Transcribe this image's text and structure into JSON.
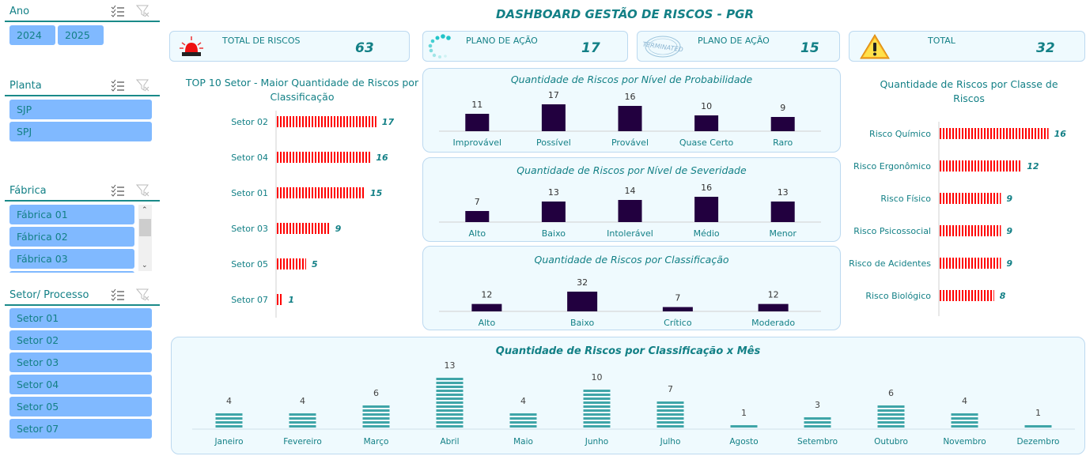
{
  "header": {
    "title": "DASHBOARD GESTÃO DE RISCOS - PGR"
  },
  "slicers": {
    "ano": {
      "title": "Ano",
      "items": [
        "2024",
        "2025"
      ]
    },
    "planta": {
      "title": "Planta",
      "items": [
        "SJP",
        "SPJ"
      ]
    },
    "fabrica": {
      "title": "Fábrica",
      "items": [
        "Fábrica 01",
        "Fábrica 02",
        "Fábrica 03"
      ]
    },
    "setor": {
      "title": "Setor/ Processo",
      "items": [
        "Setor 01",
        "Setor 02",
        "Setor 03",
        "Setor 04",
        "Setor 05",
        "Setor 07"
      ]
    }
  },
  "kpis": [
    {
      "label": "TOTAL DE RISCOS",
      "value": "63",
      "icon": "siren-icon"
    },
    {
      "label": "PLANO DE AÇÃO",
      "value": "17",
      "icon": "loading-icon"
    },
    {
      "label": "PLANO DE AÇÃO",
      "value": "15",
      "icon": "terminated-stamp-icon"
    },
    {
      "label": "TOTAL",
      "value": "32",
      "icon": "warning-icon"
    }
  ],
  "colors": {
    "accent": "#138086",
    "red_bar": "#ff0000",
    "dark_bar": "#22003f",
    "teal_bar": "#3fa5a8",
    "panel_bg": "#effafe"
  },
  "chart_data": [
    {
      "id": "top10",
      "type": "bar",
      "orientation": "horizontal",
      "title": "TOP 10 Setor - Maior Quantidade de Riscos por Classificação",
      "categories": [
        "Setor 02",
        "Setor 04",
        "Setor 01",
        "Setor 03",
        "Setor 05",
        "Setor 07"
      ],
      "values": [
        17,
        16,
        15,
        9,
        5,
        1
      ]
    },
    {
      "id": "probabilidade",
      "type": "bar",
      "title": "Quantidade de Riscos por Nível de Probabilidade",
      "categories": [
        "Improvável",
        "Possível",
        "Provável",
        "Quase Certo",
        "Raro"
      ],
      "values": [
        11,
        17,
        16,
        10,
        9
      ]
    },
    {
      "id": "severidade",
      "type": "bar",
      "title": "Quantidade de Riscos por Nível de Severidade",
      "categories": [
        "Alto",
        "Baixo",
        "Intolerável",
        "Médio",
        "Menor"
      ],
      "values": [
        7,
        13,
        14,
        16,
        13
      ]
    },
    {
      "id": "classificacao",
      "type": "bar",
      "title": "Quantidade de Riscos por Classificação",
      "categories": [
        "Alto",
        "Baixo",
        "Crítico",
        "Moderado"
      ],
      "values": [
        12,
        32,
        7,
        12
      ]
    },
    {
      "id": "classe",
      "type": "bar",
      "orientation": "horizontal",
      "title": "Quantidade de Riscos por Classe de Riscos",
      "categories": [
        "Risco Químico",
        "Risco Ergonômico",
        "Risco Físico",
        "Risco Psicossocial",
        "Risco de Acidentes",
        "Risco Biológico"
      ],
      "values": [
        16,
        12,
        9,
        9,
        9,
        8
      ]
    },
    {
      "id": "mes",
      "type": "bar",
      "title": "Quantidade de Riscos por Classificação x Mês",
      "categories": [
        "Janeiro",
        "Fevereiro",
        "Março",
        "Abril",
        "Maio",
        "Junho",
        "Julho",
        "Agosto",
        "Setembro",
        "Outubro",
        "Novembro",
        "Dezembro"
      ],
      "values": [
        4,
        4,
        6,
        13,
        4,
        10,
        7,
        1,
        3,
        6,
        4,
        1
      ]
    }
  ]
}
